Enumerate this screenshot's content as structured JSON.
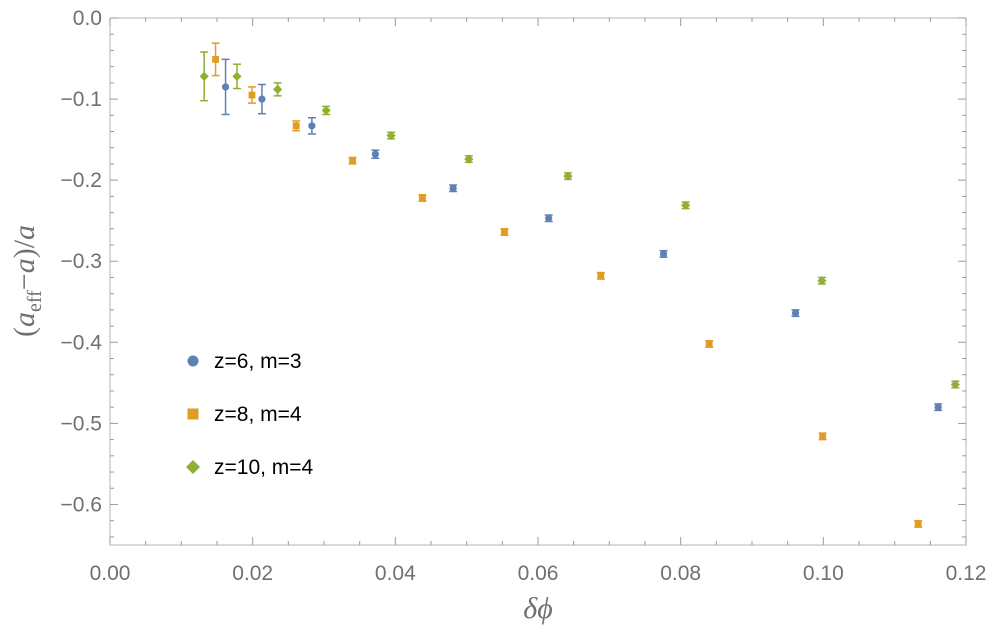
{
  "chart_data": {
    "type": "scatter",
    "title": "",
    "xlabel": "δϕ",
    "ylabel": "(a_eff − a)/a",
    "ylabel_parts": {
      "open": "(",
      "a1": "a",
      "sub": "eff",
      "mid": "−",
      "a2": "a",
      "close": ")/",
      "a3": "a"
    },
    "xlim": [
      0.0,
      0.12
    ],
    "ylim": [
      -0.65,
      0.0
    ],
    "x_ticks": [
      0.0,
      0.02,
      0.04,
      0.06,
      0.08,
      0.1,
      0.12
    ],
    "x_tick_labels": [
      "0.00",
      "0.02",
      "0.04",
      "0.06",
      "0.08",
      "0.10",
      "0.12"
    ],
    "y_ticks": [
      0.0,
      -0.1,
      -0.2,
      -0.3,
      -0.4,
      -0.5,
      -0.6
    ],
    "y_tick_labels": [
      "0.0",
      "−0.1",
      "−0.2",
      "−0.3",
      "−0.4",
      "−0.5",
      "−0.6"
    ],
    "grid": false,
    "legend_position": "lower-left",
    "error_bars": true,
    "series": [
      {
        "name": "z=6, m=3",
        "color": "#5e81b5",
        "marker": "circle",
        "points": [
          {
            "x": 0.0162,
            "y": -0.085,
            "err": 0.034
          },
          {
            "x": 0.0213,
            "y": -0.1,
            "err": 0.018
          },
          {
            "x": 0.0283,
            "y": -0.133,
            "err": 0.01
          },
          {
            "x": 0.0372,
            "y": -0.168,
            "err": 0.005
          },
          {
            "x": 0.0481,
            "y": -0.21,
            "err": 0.004
          },
          {
            "x": 0.0615,
            "y": -0.247,
            "err": 0.004
          },
          {
            "x": 0.0776,
            "y": -0.291,
            "err": 0.004
          },
          {
            "x": 0.0961,
            "y": -0.364,
            "err": 0.004
          },
          {
            "x": 0.1161,
            "y": -0.48,
            "err": 0.004
          }
        ]
      },
      {
        "name": "z=8, m=4",
        "color": "#e19c24",
        "marker": "square",
        "points": [
          {
            "x": 0.0148,
            "y": -0.051,
            "err": 0.02
          },
          {
            "x": 0.0199,
            "y": -0.095,
            "err": 0.01
          },
          {
            "x": 0.0261,
            "y": -0.133,
            "err": 0.006
          },
          {
            "x": 0.034,
            "y": -0.176,
            "err": 0.004
          },
          {
            "x": 0.0438,
            "y": -0.222,
            "err": 0.004
          },
          {
            "x": 0.0553,
            "y": -0.264,
            "err": 0.004
          },
          {
            "x": 0.0688,
            "y": -0.318,
            "err": 0.004
          },
          {
            "x": 0.084,
            "y": -0.402,
            "err": 0.004
          },
          {
            "x": 0.0999,
            "y": -0.516,
            "err": 0.004
          },
          {
            "x": 0.1133,
            "y": -0.624,
            "err": 0.004
          }
        ]
      },
      {
        "name": "z=10, m=4",
        "color": "#8fb032",
        "marker": "diamond",
        "points": [
          {
            "x": 0.0132,
            "y": -0.072,
            "err": 0.03
          },
          {
            "x": 0.0178,
            "y": -0.072,
            "err": 0.015
          },
          {
            "x": 0.0235,
            "y": -0.088,
            "err": 0.008
          },
          {
            "x": 0.0303,
            "y": -0.114,
            "err": 0.005
          },
          {
            "x": 0.0394,
            "y": -0.145,
            "err": 0.004
          },
          {
            "x": 0.0503,
            "y": -0.174,
            "err": 0.004
          },
          {
            "x": 0.0642,
            "y": -0.195,
            "err": 0.004
          },
          {
            "x": 0.0807,
            "y": -0.231,
            "err": 0.004
          },
          {
            "x": 0.0998,
            "y": -0.324,
            "err": 0.004
          },
          {
            "x": 0.1185,
            "y": -0.452,
            "err": 0.004
          }
        ]
      }
    ]
  }
}
